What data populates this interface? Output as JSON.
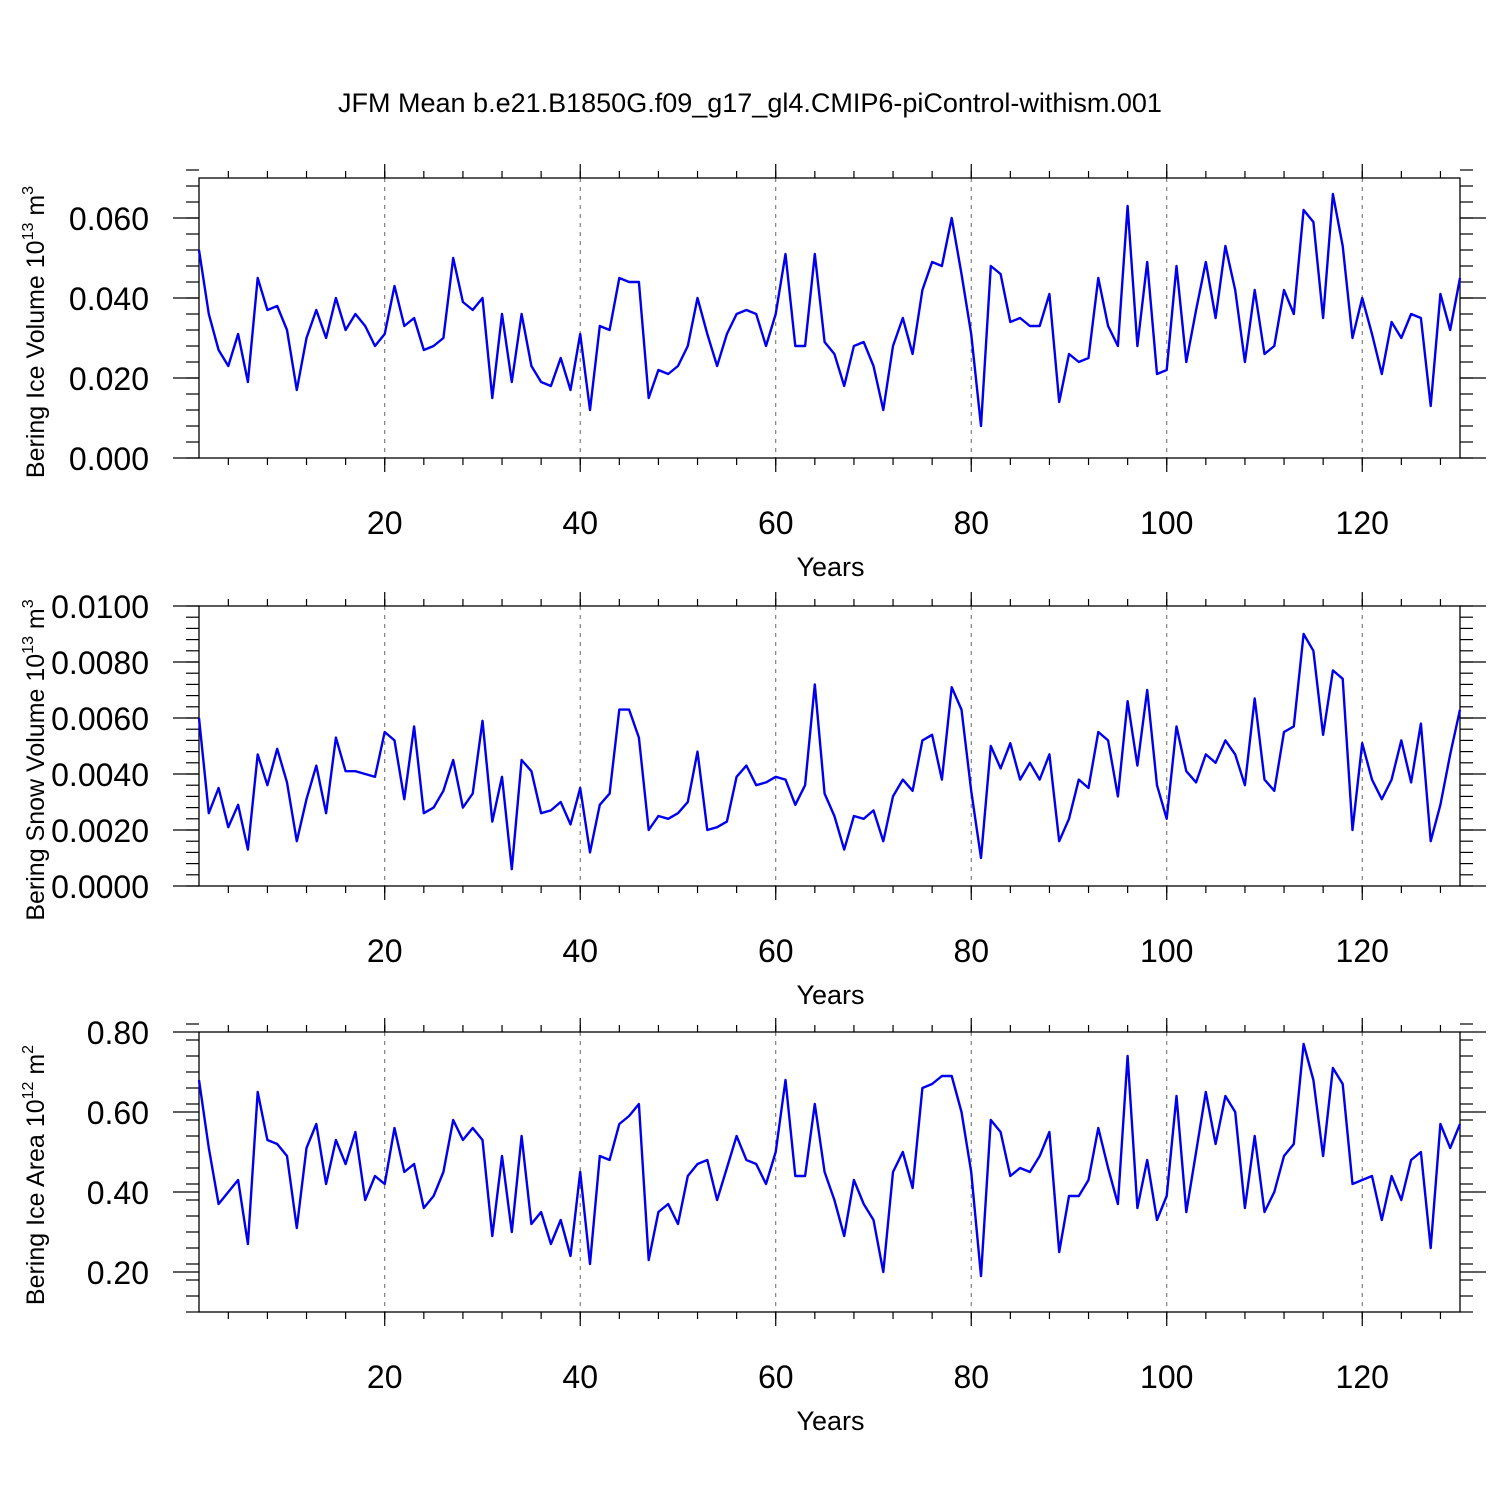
{
  "figure": {
    "title": "JFM Mean b.e21.B1850G.f09_g17_gl4.CMIP6-piControl-withism.001"
  },
  "colors": {
    "line": "#0000ee",
    "axis": "#000000",
    "grid": "#666666"
  },
  "chart_data": [
    {
      "type": "line",
      "ylabel": "Bering Ice Volume 10",
      "ylabel_exp": "13",
      "ylabel_unit": " m",
      "ylabel_unit_exp": "3",
      "xlabel": "Years",
      "xlim": [
        1,
        130
      ],
      "ylim": [
        0.0,
        0.07
      ],
      "xticks": [
        20,
        40,
        60,
        80,
        100,
        120
      ],
      "xtick_labels": [
        "20",
        "40",
        "60",
        "80",
        "100",
        "120"
      ],
      "yticks": [
        0.0,
        0.02,
        0.04,
        0.06
      ],
      "ytick_labels": [
        "0.000",
        "0.020",
        "0.040",
        "0.060"
      ],
      "y_minor_step": 0.004,
      "x_minor_step": 4,
      "grid": "x-dashed",
      "x_start": 1,
      "values": [
        0.052,
        0.036,
        0.027,
        0.023,
        0.031,
        0.019,
        0.045,
        0.037,
        0.038,
        0.032,
        0.017,
        0.03,
        0.037,
        0.03,
        0.04,
        0.032,
        0.036,
        0.033,
        0.028,
        0.031,
        0.043,
        0.033,
        0.035,
        0.027,
        0.028,
        0.03,
        0.05,
        0.039,
        0.037,
        0.04,
        0.015,
        0.036,
        0.019,
        0.036,
        0.023,
        0.019,
        0.018,
        0.025,
        0.017,
        0.031,
        0.012,
        0.033,
        0.032,
        0.045,
        0.044,
        0.044,
        0.015,
        0.022,
        0.021,
        0.023,
        0.028,
        0.04,
        0.031,
        0.023,
        0.031,
        0.036,
        0.037,
        0.036,
        0.028,
        0.036,
        0.051,
        0.028,
        0.028,
        0.051,
        0.029,
        0.026,
        0.018,
        0.028,
        0.029,
        0.023,
        0.012,
        0.028,
        0.035,
        0.026,
        0.042,
        0.049,
        0.048,
        0.06,
        0.046,
        0.031,
        0.008,
        0.048,
        0.046,
        0.034,
        0.035,
        0.033,
        0.033,
        0.041,
        0.014,
        0.026,
        0.024,
        0.025,
        0.045,
        0.033,
        0.028,
        0.063,
        0.028,
        0.049,
        0.021,
        0.022,
        0.048,
        0.024,
        0.037,
        0.049,
        0.035,
        0.053,
        0.042,
        0.024,
        0.042,
        0.026,
        0.028,
        0.042,
        0.036,
        0.062,
        0.059,
        0.035,
        0.066,
        0.053,
        0.03,
        0.04,
        0.031,
        0.021,
        0.034,
        0.03,
        0.036,
        0.035,
        0.013,
        0.041,
        0.032,
        0.045
      ]
    },
    {
      "type": "line",
      "ylabel": "Bering Snow Volume 10",
      "ylabel_exp": "13",
      "ylabel_unit": " m",
      "ylabel_unit_exp": "3",
      "xlabel": "Years",
      "xlim": [
        1,
        130
      ],
      "ylim": [
        0.0,
        0.01
      ],
      "xticks": [
        20,
        40,
        60,
        80,
        100,
        120
      ],
      "xtick_labels": [
        "20",
        "40",
        "60",
        "80",
        "100",
        "120"
      ],
      "yticks": [
        0.0,
        0.002,
        0.004,
        0.006,
        0.008,
        0.01
      ],
      "ytick_labels": [
        "0.0000",
        "0.0020",
        "0.0040",
        "0.0060",
        "0.0080",
        "0.0100"
      ],
      "y_minor_step": 0.0004,
      "x_minor_step": 4,
      "grid": "x-dashed",
      "x_start": 1,
      "values": [
        0.006,
        0.0026,
        0.0035,
        0.0021,
        0.0029,
        0.0013,
        0.0047,
        0.0036,
        0.0049,
        0.0037,
        0.0016,
        0.0031,
        0.0043,
        0.0026,
        0.0053,
        0.0041,
        0.0041,
        0.004,
        0.0039,
        0.0055,
        0.0052,
        0.0031,
        0.0057,
        0.0026,
        0.0028,
        0.0034,
        0.0045,
        0.0028,
        0.0033,
        0.0059,
        0.0023,
        0.0039,
        0.0006,
        0.0045,
        0.0041,
        0.0026,
        0.0027,
        0.003,
        0.0022,
        0.0035,
        0.0012,
        0.0029,
        0.0033,
        0.0063,
        0.0063,
        0.0053,
        0.002,
        0.0025,
        0.0024,
        0.0026,
        0.003,
        0.0048,
        0.002,
        0.0021,
        0.0023,
        0.0039,
        0.0043,
        0.0036,
        0.0037,
        0.0039,
        0.0038,
        0.0029,
        0.0036,
        0.0072,
        0.0033,
        0.0025,
        0.0013,
        0.0025,
        0.0024,
        0.0027,
        0.0016,
        0.0032,
        0.0038,
        0.0034,
        0.0052,
        0.0054,
        0.0038,
        0.0071,
        0.0063,
        0.0034,
        0.001,
        0.005,
        0.0042,
        0.0051,
        0.0038,
        0.0044,
        0.0038,
        0.0047,
        0.0016,
        0.0024,
        0.0038,
        0.0035,
        0.0055,
        0.0052,
        0.0032,
        0.0066,
        0.0043,
        0.007,
        0.0036,
        0.0024,
        0.0057,
        0.0041,
        0.0037,
        0.0047,
        0.0044,
        0.0052,
        0.0047,
        0.0036,
        0.0067,
        0.0038,
        0.0034,
        0.0055,
        0.0057,
        0.009,
        0.0084,
        0.0054,
        0.0077,
        0.0074,
        0.002,
        0.0051,
        0.0038,
        0.0031,
        0.0038,
        0.0052,
        0.0037,
        0.0058,
        0.0016,
        0.0029,
        0.0047,
        0.0063
      ]
    },
    {
      "type": "line",
      "ylabel": "Bering Ice Area 10",
      "ylabel_exp": "12",
      "ylabel_unit": " m",
      "ylabel_unit_exp": "2",
      "xlabel": "Years",
      "xlim": [
        1,
        130
      ],
      "ylim": [
        0.1,
        0.8
      ],
      "xticks": [
        20,
        40,
        60,
        80,
        100,
        120
      ],
      "xtick_labels": [
        "20",
        "40",
        "60",
        "80",
        "100",
        "120"
      ],
      "yticks": [
        0.2,
        0.4,
        0.6,
        0.8
      ],
      "ytick_labels": [
        "0.20",
        "0.40",
        "0.60",
        "0.80"
      ],
      "y_minor_step": 0.04,
      "x_minor_step": 4,
      "grid": "x-dashed",
      "x_start": 1,
      "values": [
        0.68,
        0.51,
        0.37,
        0.4,
        0.43,
        0.27,
        0.65,
        0.53,
        0.52,
        0.49,
        0.31,
        0.51,
        0.57,
        0.42,
        0.53,
        0.47,
        0.55,
        0.38,
        0.44,
        0.42,
        0.56,
        0.45,
        0.47,
        0.36,
        0.39,
        0.45,
        0.58,
        0.53,
        0.56,
        0.53,
        0.29,
        0.49,
        0.3,
        0.54,
        0.32,
        0.35,
        0.27,
        0.33,
        0.24,
        0.45,
        0.22,
        0.49,
        0.48,
        0.57,
        0.59,
        0.62,
        0.23,
        0.35,
        0.37,
        0.32,
        0.44,
        0.47,
        0.48,
        0.38,
        0.46,
        0.54,
        0.48,
        0.47,
        0.42,
        0.5,
        0.68,
        0.44,
        0.44,
        0.62,
        0.45,
        0.38,
        0.29,
        0.43,
        0.37,
        0.33,
        0.2,
        0.45,
        0.5,
        0.41,
        0.66,
        0.67,
        0.69,
        0.69,
        0.6,
        0.45,
        0.19,
        0.58,
        0.55,
        0.44,
        0.46,
        0.45,
        0.49,
        0.55,
        0.25,
        0.39,
        0.39,
        0.43,
        0.56,
        0.46,
        0.37,
        0.74,
        0.36,
        0.48,
        0.33,
        0.39,
        0.64,
        0.35,
        0.5,
        0.65,
        0.52,
        0.64,
        0.6,
        0.36,
        0.54,
        0.35,
        0.4,
        0.49,
        0.52,
        0.77,
        0.68,
        0.49,
        0.71,
        0.67,
        0.42,
        0.43,
        0.44,
        0.33,
        0.44,
        0.38,
        0.48,
        0.5,
        0.26,
        0.57,
        0.51,
        0.57
      ]
    }
  ]
}
